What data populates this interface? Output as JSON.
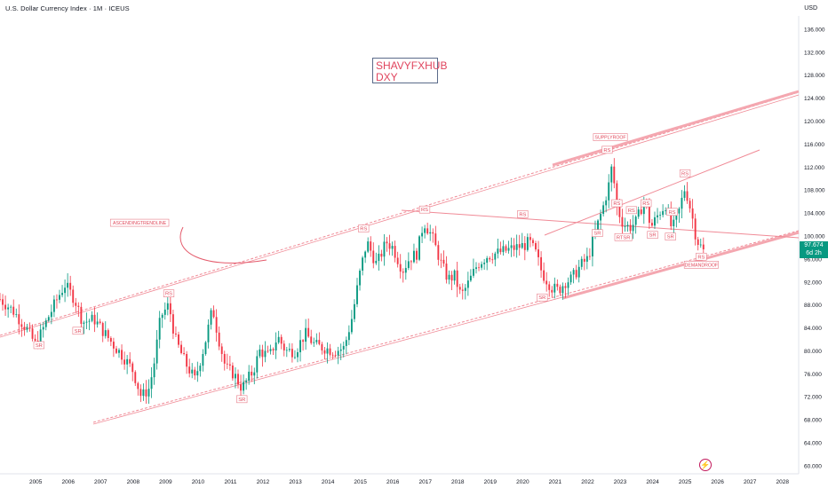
{
  "header": {
    "title": "U.S. Dollar Currency Index · 1M · ICEUS",
    "currency": "USD"
  },
  "watermark": {
    "line1": "SHAVYFXHUB",
    "line2": "DXY"
  },
  "price_tag": {
    "price": "97.674",
    "countdown": "6d 2h"
  },
  "annotations": [
    {
      "text": "SR",
      "time": 2005.1,
      "price": 81.0
    },
    {
      "text": "SR",
      "time": 2006.3,
      "price": 83.5
    },
    {
      "text": "RS",
      "time": 2009.1,
      "price": 90.0
    },
    {
      "text": "SR",
      "time": 2011.35,
      "price": 71.6
    },
    {
      "text": "RS",
      "time": 2015.1,
      "price": 101.3
    },
    {
      "text": "RS",
      "time": 2016.98,
      "price": 104.6
    },
    {
      "text": "RS",
      "time": 2020.0,
      "price": 103.8
    },
    {
      "text": "SR",
      "time": 2020.6,
      "price": 89.3
    },
    {
      "text": "SR",
      "time": 2022.3,
      "price": 100.5
    },
    {
      "text": "RS",
      "time": 2022.6,
      "price": 115.0
    },
    {
      "text": "RS",
      "time": 2022.9,
      "price": 105.7
    },
    {
      "text": "RS",
      "time": 2023.35,
      "price": 104.5
    },
    {
      "text": "RTSR",
      "time": 2023.1,
      "price": 99.8
    },
    {
      "text": "RS",
      "time": 2023.8,
      "price": 105.7
    },
    {
      "text": "SR",
      "time": 2024.0,
      "price": 100.2
    },
    {
      "text": "RS",
      "time": 2024.6,
      "price": 104.2
    },
    {
      "text": "SR",
      "time": 2024.55,
      "price": 99.9
    },
    {
      "text": "RS",
      "time": 2025.0,
      "price": 110.9
    },
    {
      "text": "RS",
      "time": 2025.5,
      "price": 96.4
    },
    {
      "text": "DEMANDROOF",
      "time": 2025.5,
      "price": 95.0
    },
    {
      "text": "SUPPLYROOF",
      "time": 2022.7,
      "price": 117.2
    },
    {
      "text": "ASCENDINGTRENDLINE",
      "time": 2008.2,
      "price": 102.3
    }
  ],
  "chart_data": {
    "type": "candlestick",
    "title": "U.S. Dollar Currency Index · 1M · ICEUS",
    "xlabel": "",
    "ylabel": "USD",
    "x_range": [
      2003.9,
      2028.5
    ],
    "ylim": [
      58.6,
      138.3
    ],
    "x_ticks": [
      "2005",
      "2006",
      "2007",
      "2008",
      "2009",
      "2010",
      "2011",
      "2012",
      "2013",
      "2014",
      "2015",
      "2016",
      "2017",
      "2018",
      "2019",
      "2020",
      "2021",
      "2022",
      "2023",
      "2024",
      "2025",
      "2026",
      "2027",
      "2028"
    ],
    "y_ticks": [
      "60.000",
      "64.000",
      "68.000",
      "72.000",
      "76.000",
      "80.000",
      "84.000",
      "88.000",
      "92.000",
      "96.000",
      "100.000",
      "104.000",
      "108.000",
      "112.000",
      "116.000",
      "120.000",
      "124.000",
      "128.000",
      "132.000",
      "136.000"
    ],
    "grid": false,
    "last_price": 97.674,
    "close_path": [
      [
        2003.9,
        89.0
      ],
      [
        2004.3,
        87.0
      ],
      [
        2004.7,
        84.0
      ],
      [
        2005.0,
        81.0
      ],
      [
        2005.4,
        86.0
      ],
      [
        2005.7,
        89.5
      ],
      [
        2005.9,
        91.5
      ],
      [
        2006.2,
        89.0
      ],
      [
        2006.45,
        85.0
      ],
      [
        2006.8,
        85.5
      ],
      [
        2007.0,
        84.0
      ],
      [
        2007.4,
        81.0
      ],
      [
        2007.7,
        79.0
      ],
      [
        2008.0,
        76.5
      ],
      [
        2008.25,
        72.0
      ],
      [
        2008.5,
        73.5
      ],
      [
        2008.65,
        78.0
      ],
      [
        2008.85,
        86.0
      ],
      [
        2009.1,
        88.0
      ],
      [
        2009.3,
        82.0
      ],
      [
        2009.6,
        78.0
      ],
      [
        2009.9,
        75.0
      ],
      [
        2010.2,
        81.0
      ],
      [
        2010.45,
        87.5
      ],
      [
        2010.6,
        83.0
      ],
      [
        2010.85,
        77.0
      ],
      [
        2011.1,
        76.0
      ],
      [
        2011.35,
        73.5
      ],
      [
        2011.7,
        76.5
      ],
      [
        2011.9,
        80.0
      ],
      [
        2012.2,
        79.0
      ],
      [
        2012.45,
        82.5
      ],
      [
        2012.7,
        80.0
      ],
      [
        2013.0,
        80.0
      ],
      [
        2013.3,
        83.0
      ],
      [
        2013.6,
        81.0
      ],
      [
        2013.9,
        80.5
      ],
      [
        2014.2,
        80.0
      ],
      [
        2014.5,
        80.5
      ],
      [
        2014.75,
        86.0
      ],
      [
        2015.0,
        94.0
      ],
      [
        2015.2,
        99.0
      ],
      [
        2015.5,
        95.0
      ],
      [
        2015.8,
        99.0
      ],
      [
        2016.0,
        98.0
      ],
      [
        2016.3,
        94.0
      ],
      [
        2016.5,
        96.0
      ],
      [
        2016.75,
        97.0
      ],
      [
        2016.95,
        102.5
      ],
      [
        2017.2,
        100.0
      ],
      [
        2017.5,
        95.0
      ],
      [
        2017.7,
        92.5
      ],
      [
        2017.9,
        93.0
      ],
      [
        2018.1,
        89.5
      ],
      [
        2018.3,
        91.5
      ],
      [
        2018.6,
        95.0
      ],
      [
        2018.9,
        96.5
      ],
      [
        2019.2,
        97.0
      ],
      [
        2019.5,
        97.5
      ],
      [
        2019.8,
        98.0
      ],
      [
        2020.1,
        98.5
      ],
      [
        2020.2,
        99.0
      ],
      [
        2020.4,
        97.0
      ],
      [
        2020.6,
        93.5
      ],
      [
        2020.9,
        91.0
      ],
      [
        2021.1,
        90.5
      ],
      [
        2021.3,
        92.0
      ],
      [
        2021.5,
        92.5
      ],
      [
        2021.8,
        95.0
      ],
      [
        2022.0,
        96.0
      ],
      [
        2022.2,
        100.0
      ],
      [
        2022.5,
        105.5
      ],
      [
        2022.7,
        110.0
      ],
      [
        2022.75,
        112.5
      ],
      [
        2022.9,
        105.0
      ],
      [
        2023.1,
        102.0
      ],
      [
        2023.3,
        101.5
      ],
      [
        2023.5,
        102.5
      ],
      [
        2023.75,
        106.5
      ],
      [
        2023.95,
        101.5
      ],
      [
        2024.2,
        104.0
      ],
      [
        2024.4,
        105.5
      ],
      [
        2024.6,
        101.0
      ],
      [
        2024.8,
        104.0
      ],
      [
        2025.0,
        108.5
      ],
      [
        2025.2,
        104.0
      ],
      [
        2025.35,
        99.5
      ],
      [
        2025.5,
        98.0
      ],
      [
        2025.6,
        97.674
      ]
    ]
  }
}
